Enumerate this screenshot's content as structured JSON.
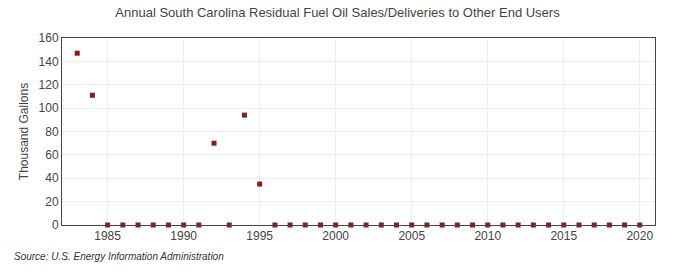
{
  "chart_data": {
    "type": "scatter",
    "title": "Annual South Carolina Residual Fuel Oil Sales/Deliveries to Other End Users",
    "y_label": "Thousand Gallons",
    "annotations": [
      "Source: U.S. Energy Information Administration"
    ],
    "x": [
      1983,
      1984,
      1985,
      1986,
      1987,
      1988,
      1989,
      1990,
      1991,
      1992,
      1993,
      1994,
      1995,
      1996,
      1997,
      1998,
      1999,
      2000,
      2001,
      2002,
      2003,
      2004,
      2005,
      2006,
      2007,
      2008,
      2009,
      2010,
      2011,
      2012,
      2013,
      2014,
      2015,
      2016,
      2017,
      2018,
      2019,
      2020
    ],
    "values": [
      147,
      111,
      0,
      0,
      0,
      0,
      0,
      0,
      0,
      70,
      0,
      94,
      35,
      0,
      0,
      0,
      0,
      0,
      0,
      0,
      0,
      0,
      0,
      0,
      0,
      0,
      0,
      0,
      0,
      0,
      0,
      0,
      0,
      0,
      0,
      0,
      0,
      0
    ],
    "color": "#8b1a1a",
    "marker": "square",
    "xlim": [
      1982,
      2021
    ],
    "xticks": [
      1985,
      1990,
      1995,
      2000,
      2005,
      2010,
      2015,
      2020
    ],
    "ylim": [
      0,
      160
    ],
    "yticks": [
      0,
      20,
      40,
      60,
      80,
      100,
      120,
      140,
      160
    ],
    "grid": true
  }
}
